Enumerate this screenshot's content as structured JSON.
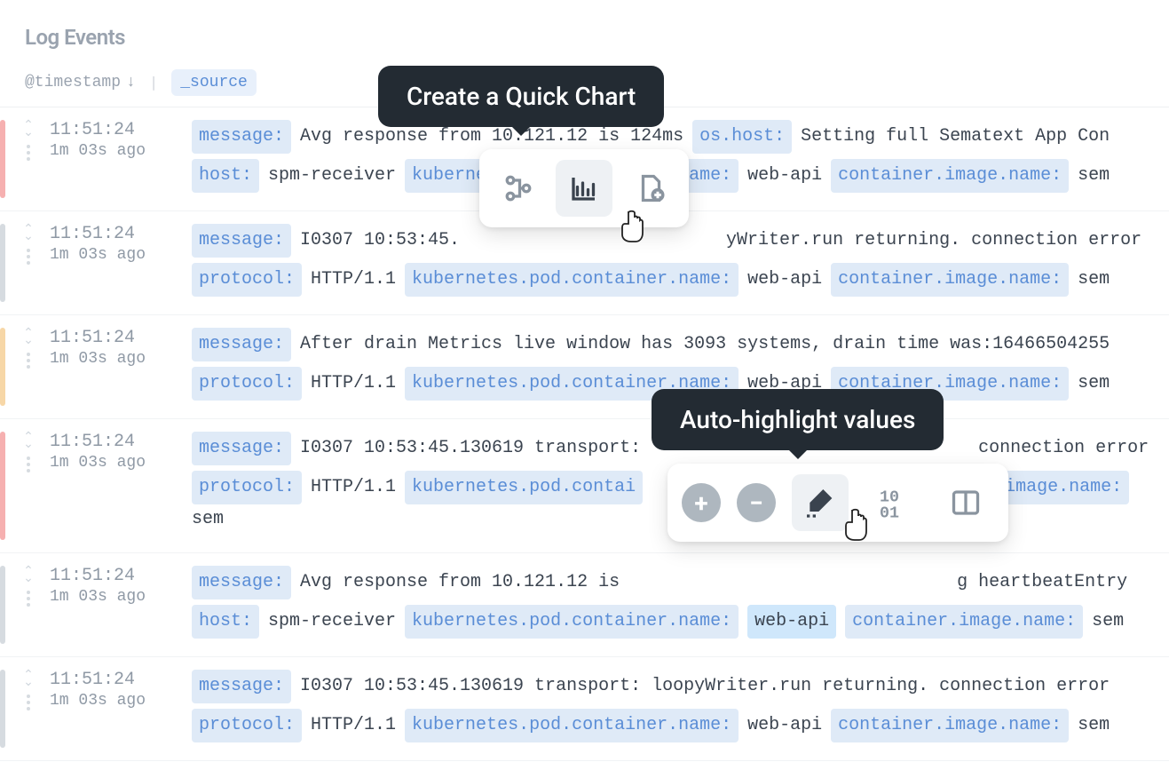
{
  "header": {
    "title": "Log Events"
  },
  "columns": {
    "timestamp_label": "@timestamp",
    "source_label": "_source"
  },
  "colors": {
    "key_bg": "#dfeaf7",
    "key_fg": "#5a8dd6",
    "val_fg": "#3b4450",
    "hl_bg": "#cfe7fb",
    "muted": "#9aa3af",
    "tooltip_bg": "#232b33",
    "gutter_red": "#f6b0b0",
    "gutter_gray": "#d6dbe0",
    "gutter_orange": "#f7d7a7"
  },
  "tooltip1": "Create a Quick Chart",
  "tooltip2": "Auto-highlight values",
  "toolbar1": {
    "buttons": [
      "branch-icon",
      "bar-chart-icon",
      "add-page-icon"
    ],
    "active_index": 1
  },
  "toolbar2": {
    "buttons": [
      "plus-circle-icon",
      "minus-circle-icon",
      "highlighter-icon",
      "binary-icon",
      "columns-icon"
    ],
    "active_index": 2
  },
  "rows": [
    {
      "time": "11:51:24",
      "ago": "1m 03s ago",
      "gutter_color": "gutter_red",
      "lines": [
        [
          {
            "k": "message:",
            "klite": false
          },
          {
            "v": "Avg response from 10.121.12 is 124ms"
          },
          {
            "k": "os.host:",
            "klite": true
          },
          {
            "v": "Setting full Sematext App Con"
          }
        ],
        [
          {
            "k": "host:",
            "klite": true
          },
          {
            "v": "spm-receiver"
          },
          {
            "k": "kubernetes.pod.container.name:",
            "klite": true,
            "partial": true
          },
          {
            "v": "web-api"
          },
          {
            "k": "container.image.name:",
            "klite": true
          },
          {
            "v": "sem"
          }
        ]
      ]
    },
    {
      "time": "11:51:24",
      "ago": "1m 03s ago",
      "gutter_color": "gutter_gray",
      "lines": [
        [
          {
            "k": "message:",
            "klite": false
          },
          {
            "v": "I0307 10:53:45."
          },
          {
            "gap": 280
          },
          {
            "v": "yWriter.run returning. connection error"
          }
        ],
        [
          {
            "k": "protocol:",
            "klite": true
          },
          {
            "v": "HTTP/1.1"
          },
          {
            "k": "kubernetes.pod.container.name:",
            "klite": false
          },
          {
            "v": "web-api"
          },
          {
            "k": "container.image.name:",
            "klite": true
          },
          {
            "v": "sem"
          }
        ]
      ]
    },
    {
      "time": "11:51:24",
      "ago": "1m 03s ago",
      "gutter_color": "gutter_orange",
      "lines": [
        [
          {
            "k": "message:",
            "klite": false
          },
          {
            "v": "After drain Metrics live window has 3093 systems, drain time was:16466504255"
          }
        ],
        [
          {
            "k": "protocol:",
            "klite": true
          },
          {
            "v": "HTTP/1.1"
          },
          {
            "k": "kubernetes.pod.container.name:",
            "klite": true
          },
          {
            "v": "web-api"
          },
          {
            "k": "container.image.name:",
            "klite": true
          },
          {
            "v": "sem"
          }
        ]
      ]
    },
    {
      "time": "11:51:24",
      "ago": "1m 03s ago",
      "gutter_color": "gutter_red",
      "lines": [
        [
          {
            "k": "message:",
            "klite": false
          },
          {
            "v": "I0307 10:53:45.130619 transport:"
          },
          {
            "gap": 360
          },
          {
            "v": "connection error"
          }
        ],
        [
          {
            "k": "protocol:",
            "klite": true
          },
          {
            "v": "HTTP/1.1"
          },
          {
            "k": "kubernetes.pod.contai",
            "klite": true
          },
          {
            "gap": 380
          },
          {
            "k": "image.name:",
            "klite": true
          },
          {
            "v": "sem"
          }
        ]
      ]
    },
    {
      "time": "11:51:24",
      "ago": "1m 03s ago",
      "gutter_color": "gutter_gray",
      "lines": [
        [
          {
            "k": "message:",
            "klite": false
          },
          {
            "v": "Avg response from 10.121.12 is"
          },
          {
            "gap": 360
          },
          {
            "v": "g heartbeatEntry"
          }
        ],
        [
          {
            "k": "host:",
            "klite": true
          },
          {
            "v": "spm-receiver"
          },
          {
            "k": "kubernetes.pod.container.name:",
            "klite": true
          },
          {
            "vhl": "web-api"
          },
          {
            "k": "container.image.name:",
            "klite": true
          },
          {
            "v": "sem"
          }
        ]
      ]
    },
    {
      "time": "11:51:24",
      "ago": "1m 03s ago",
      "gutter_color": "gutter_gray",
      "lines": [
        [
          {
            "k": "message:",
            "klite": false
          },
          {
            "v": "I0307 10:53:45.130619 transport: loopyWriter.run returning. connection error"
          }
        ],
        [
          {
            "k": "protocol:",
            "klite": true
          },
          {
            "v": "HTTP/1.1"
          },
          {
            "k": "kubernetes.pod.container.name:",
            "klite": true
          },
          {
            "v": "web-api"
          },
          {
            "k": "container.image.name:",
            "klite": true
          },
          {
            "v": "sem"
          }
        ]
      ]
    }
  ]
}
